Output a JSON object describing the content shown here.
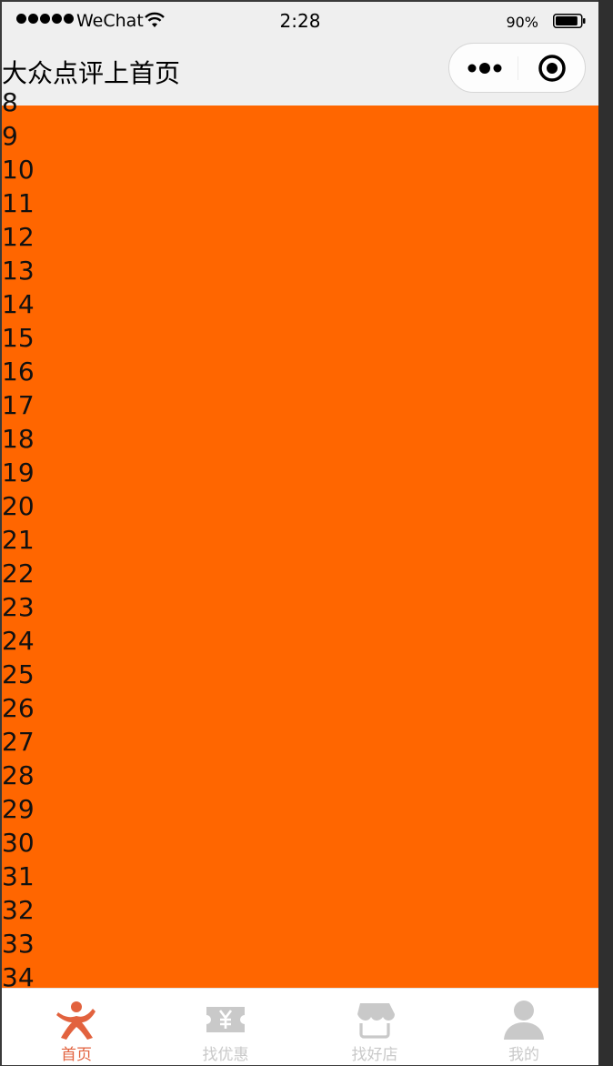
{
  "status_bar": {
    "carrier": "WeChat",
    "time": "2:28",
    "battery_percent": "90%",
    "battery_level": 0.9,
    "signal_icon": "signal-dots-icon",
    "wifi_icon": "wifi-icon",
    "battery_icon": "battery-icon"
  },
  "nav_bar": {
    "title": "大众点评上首页",
    "more_icon": "more-dots-icon",
    "close_icon": "target-close-icon"
  },
  "content": {
    "background_color": "#ff6600",
    "items": [
      "8",
      "9",
      "10",
      "11",
      "12",
      "13",
      "14",
      "15",
      "16",
      "17",
      "18",
      "19",
      "20",
      "21",
      "22",
      "23",
      "24",
      "25",
      "26",
      "27",
      "28",
      "29",
      "30",
      "31",
      "32",
      "33",
      "34"
    ]
  },
  "tab_bar": {
    "active_color": "#e2623e",
    "inactive_color": "#c9c9c9",
    "tabs": [
      {
        "label": "首页",
        "icon": "home-figure-icon",
        "active": true
      },
      {
        "label": "找优惠",
        "icon": "coupon-yen-icon",
        "active": false
      },
      {
        "label": "找好店",
        "icon": "store-icon",
        "active": false
      },
      {
        "label": "我的",
        "icon": "user-icon",
        "active": false
      }
    ]
  }
}
